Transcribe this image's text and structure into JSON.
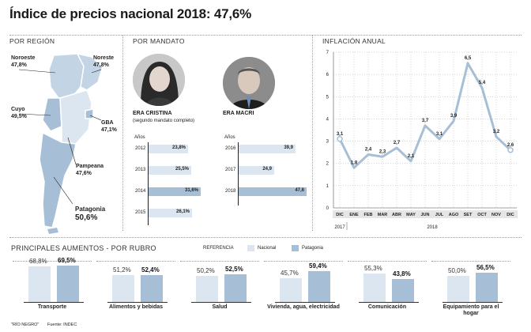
{
  "title": "Índice de precios nacional 2018: 47,6%",
  "sections": {
    "region": "POR REGIÓN",
    "mandato": "POR MANDATO",
    "inflacion": "INFLACIÓN ANUAL",
    "rubro": "PRINCIPALES AUMENTOS - POR RUBRO"
  },
  "regions": [
    {
      "name": "Noroeste",
      "value": "47,8%"
    },
    {
      "name": "Noreste",
      "value": "47,8%"
    },
    {
      "name": "Cuyo",
      "value": "49,5%"
    },
    {
      "name": "GBA",
      "value": "47,1%"
    },
    {
      "name": "Pampeana",
      "value": "47,6%"
    },
    {
      "name": "Patagonia",
      "value": "50,6%"
    }
  ],
  "mandatos": [
    {
      "era": "ERA CRISTINA",
      "sub": "(segundo mandato completo)",
      "years_label": "Años",
      "rows": [
        {
          "year": "2012",
          "value": 23.8,
          "label": "23,8%"
        },
        {
          "year": "2013",
          "value": 25.5,
          "label": "25,5%"
        },
        {
          "year": "2014",
          "value": 31.6,
          "label": "31,6%"
        },
        {
          "year": "2015",
          "value": 26.1,
          "label": "26,1%"
        }
      ]
    },
    {
      "era": "ERA MACRI",
      "sub": "",
      "years_label": "Años",
      "rows": [
        {
          "year": "2016",
          "value": 39.9,
          "label": "39,9"
        },
        {
          "year": "2017",
          "value": 24.9,
          "label": "24,9"
        },
        {
          "year": "2018",
          "value": 47.6,
          "label": "47,6"
        }
      ]
    }
  ],
  "chart_data": {
    "type": "line",
    "title": "INFLACIÓN ANUAL",
    "x": [
      "DIC",
      "ENE",
      "FEB",
      "MAR",
      "ABR",
      "MAY",
      "JUN",
      "JUL",
      "AGO",
      "SET",
      "OCT",
      "NOV",
      "DIC"
    ],
    "y_labels": [
      "3,1",
      "1,8",
      "2,4",
      "2,3",
      "2,7",
      "2,1",
      "3,7",
      "3,1",
      "3,9",
      "6,5",
      "5,4",
      "3,2",
      "2,6"
    ],
    "values": [
      3.1,
      1.8,
      2.4,
      2.3,
      2.7,
      2.1,
      3.7,
      3.1,
      3.9,
      6.5,
      5.4,
      3.2,
      2.6
    ],
    "ylim": [
      0,
      7
    ],
    "yticks": [
      "0",
      "1",
      "2",
      "3",
      "4",
      "5",
      "6",
      "7"
    ],
    "year_labels": [
      "2017",
      "2018"
    ],
    "grid": true
  },
  "referencia": {
    "label": "REFERENCIA",
    "nacional": "Nacional",
    "patagonia": "Patagonia",
    "nacional_color": "#dbe6f0",
    "patagonia_color": "#a6bfd6"
  },
  "rubros": [
    {
      "name": "Transporte",
      "nacional": 68.8,
      "nacional_label": "68,8%",
      "patagonia": 69.5,
      "patagonia_label": "69,5%"
    },
    {
      "name": "Alimentos y bebidas",
      "nacional": 51.2,
      "nacional_label": "51,2%",
      "patagonia": 52.4,
      "patagonia_label": "52,4%"
    },
    {
      "name": "Salud",
      "nacional": 50.2,
      "nacional_label": "50,2%",
      "patagonia": 52.5,
      "patagonia_label": "52,5%"
    },
    {
      "name": "Vivienda, agua, electricidad",
      "nacional": 45.7,
      "nacional_label": "45,7%",
      "patagonia": 59.4,
      "patagonia_label": "59,4%"
    },
    {
      "name": "Comunicación",
      "nacional": 55.3,
      "nacional_label": "55,3%",
      "patagonia": 43.8,
      "patagonia_label": "43,8%"
    },
    {
      "name": "Equipamiento para el hogar",
      "nacional": 50.0,
      "nacional_label": "50,0%",
      "patagonia": 56.5,
      "patagonia_label": "56,5%"
    }
  ],
  "footer": {
    "credit": "\"RÍO NEGRO\"",
    "source": "Fuente: INDEC"
  },
  "colors": {
    "line": "#a6bfd6",
    "map_light": "#dbe6f0",
    "map_mid": "#c3d4e4",
    "map_dark": "#a6bfd6"
  }
}
